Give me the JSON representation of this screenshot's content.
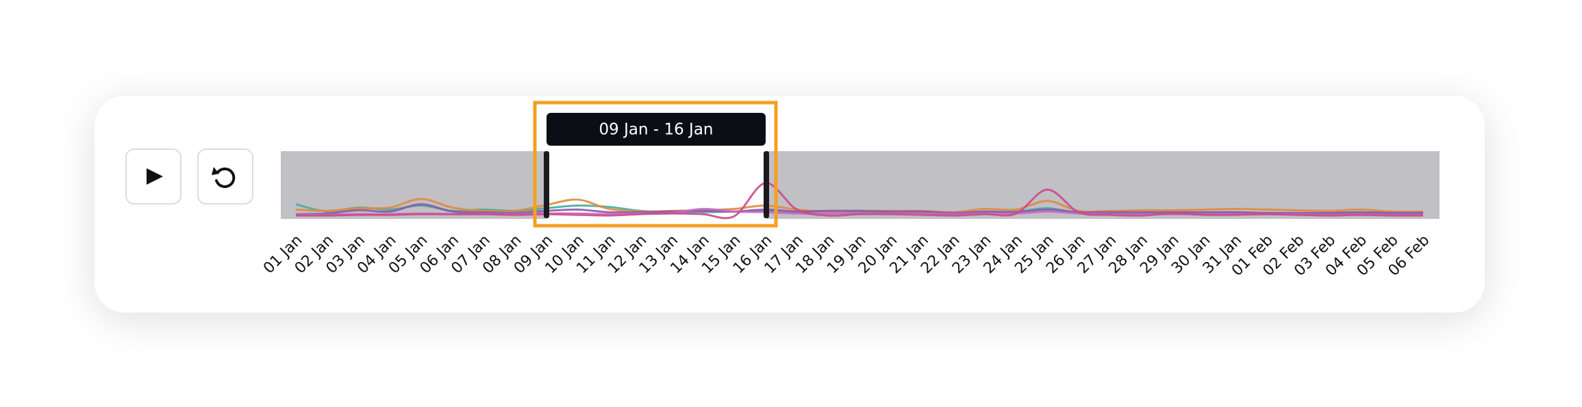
{
  "chart_data": {
    "type": "line",
    "categories": [
      "01 Jan",
      "02 Jan",
      "03 Jan",
      "04 Jan",
      "05 Jan",
      "06 Jan",
      "07 Jan",
      "08 Jan",
      "09 Jan",
      "10 Jan",
      "11 Jan",
      "12 Jan",
      "13 Jan",
      "14 Jan",
      "15 Jan",
      "16 Jan",
      "17 Jan",
      "18 Jan",
      "19 Jan",
      "20 Jan",
      "21 Jan",
      "22 Jan",
      "23 Jan",
      "24 Jan",
      "25 Jan",
      "26 Jan",
      "27 Jan",
      "28 Jan",
      "29 Jan",
      "30 Jan",
      "31 Jan",
      "01 Feb",
      "02 Feb",
      "03 Feb",
      "04 Feb",
      "05 Feb",
      "06 Feb"
    ],
    "ylim": [
      0,
      10
    ],
    "series": [
      {
        "color": "#4aa8a0",
        "values": [
          2.0,
          0.9,
          1.5,
          1.2,
          1.8,
          1.0,
          1.2,
          1.0,
          1.4,
          1.8,
          1.6,
          1.0,
          0.8,
          0.8,
          0.9,
          1.0,
          0.8,
          0.9,
          0.8,
          0.8,
          0.8,
          0.6,
          0.8,
          0.9,
          1.4,
          0.7,
          0.6,
          0.7,
          0.7,
          0.7,
          0.7,
          0.6,
          0.6,
          0.6,
          0.7,
          0.6,
          0.6
        ]
      },
      {
        "color": "#e08a3c",
        "values": [
          1.2,
          1.0,
          1.4,
          1.5,
          2.8,
          1.5,
          1.0,
          1.0,
          1.9,
          2.7,
          1.3,
          0.9,
          1.0,
          1.1,
          1.3,
          1.8,
          1.2,
          0.9,
          1.0,
          1.0,
          1.0,
          0.8,
          1.3,
          1.2,
          2.5,
          1.0,
          1.0,
          1.1,
          1.1,
          1.2,
          1.3,
          1.2,
          1.1,
          1.0,
          1.2,
          0.9,
          0.9
        ]
      },
      {
        "color": "#8a5aa8",
        "values": [
          0.5,
          0.6,
          1.1,
          0.9,
          2.0,
          0.9,
          0.8,
          0.7,
          1.0,
          1.2,
          0.8,
          0.8,
          0.9,
          1.0,
          0.9,
          1.2,
          0.9,
          1.0,
          1.0,
          0.9,
          0.9,
          0.7,
          0.9,
          0.8,
          1.2,
          0.8,
          0.8,
          0.8,
          0.8,
          0.8,
          0.8,
          0.7,
          0.7,
          0.7,
          0.8,
          0.7,
          0.7
        ]
      },
      {
        "color": "#c868c8",
        "values": [
          0.4,
          0.4,
          0.5,
          0.5,
          0.6,
          0.5,
          0.5,
          0.5,
          0.6,
          0.6,
          0.5,
          0.6,
          0.7,
          1.3,
          0.9,
          0.8,
          0.6,
          0.6,
          0.6,
          0.6,
          0.6,
          0.5,
          0.6,
          0.6,
          0.9,
          0.6,
          0.5,
          0.5,
          0.5,
          0.5,
          0.5,
          0.5,
          0.5,
          0.4,
          0.5,
          0.4,
          0.4
        ]
      },
      {
        "color": "#cc4a8a",
        "values": [
          0.3,
          0.3,
          0.4,
          0.4,
          0.5,
          0.5,
          0.5,
          0.4,
          0.5,
          0.4,
          0.3,
          0.5,
          0.6,
          0.5,
          0.2,
          5.2,
          1.2,
          0.3,
          0.5,
          0.5,
          0.4,
          0.3,
          0.5,
          0.6,
          4.2,
          0.8,
          0.4,
          0.3,
          0.6,
          0.4,
          0.4,
          0.5,
          0.4,
          0.3,
          0.4,
          0.3,
          0.3
        ]
      }
    ]
  },
  "selection": {
    "label": "09 Jan - 16 Jan"
  }
}
